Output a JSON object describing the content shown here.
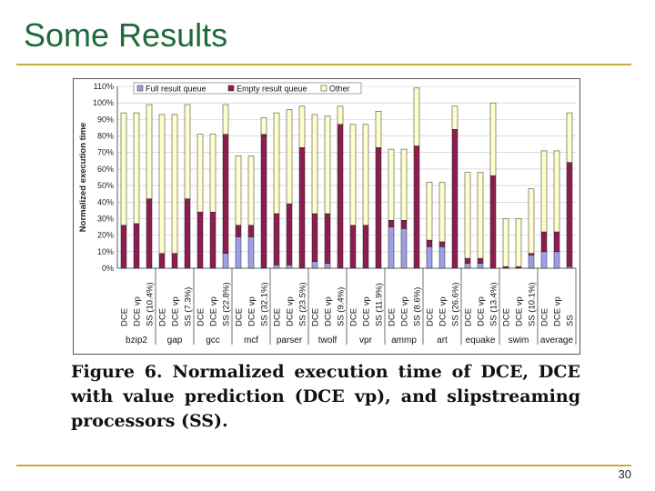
{
  "slide": {
    "title": "Some Results",
    "page_number": "30"
  },
  "caption": "Figure 6. Normalized execution time of DCE, DCE with value prediction (DCE vp), and slipstreaming processors (SS).",
  "colors": {
    "full": "#9e9ee8",
    "empty": "#8b1e4e",
    "other": "#ffffcc",
    "title": "#1f6a3a",
    "rule": "#c8a93c"
  },
  "chart_data": {
    "type": "bar",
    "stacked": true,
    "ylabel": "Normalized execution time",
    "ylim": [
      0,
      110
    ],
    "yticks": [
      "0%",
      "10%",
      "20%",
      "30%",
      "40%",
      "50%",
      "60%",
      "70%",
      "80%",
      "90%",
      "100%",
      "110%"
    ],
    "legend": [
      "Full result queue",
      "Empty result queue",
      "Other"
    ],
    "groups": [
      {
        "name": "bzip2",
        "bars": [
          {
            "label": "DCE",
            "full": 0,
            "empty": 26,
            "other": 68
          },
          {
            "label": "DCE vp",
            "full": 0,
            "empty": 27,
            "other": 67
          },
          {
            "label": "SS (10.4%)",
            "full": 0,
            "empty": 42,
            "other": 57
          }
        ]
      },
      {
        "name": "gap",
        "bars": [
          {
            "label": "DCE",
            "full": 0,
            "empty": 9,
            "other": 84
          },
          {
            "label": "DCE vp",
            "full": 0,
            "empty": 9,
            "other": 84
          },
          {
            "label": "SS (7.3%)",
            "full": 0,
            "empty": 42,
            "other": 57
          }
        ]
      },
      {
        "name": "gcc",
        "bars": [
          {
            "label": "DCE",
            "full": 0,
            "empty": 34,
            "other": 47
          },
          {
            "label": "DCE vp",
            "full": 0,
            "empty": 34,
            "other": 47
          },
          {
            "label": "SS (22.8%)",
            "full": 9,
            "empty": 72,
            "other": 18
          }
        ]
      },
      {
        "name": "mcf",
        "bars": [
          {
            "label": "DCE",
            "full": 19,
            "empty": 7,
            "other": 42
          },
          {
            "label": "DCE vp",
            "full": 19,
            "empty": 7,
            "other": 42
          },
          {
            "label": "SS (32.1%)",
            "full": 0,
            "empty": 81,
            "other": 10
          }
        ]
      },
      {
        "name": "parser",
        "bars": [
          {
            "label": "DCE",
            "full": 2,
            "empty": 31,
            "other": 61
          },
          {
            "label": "DCE vp",
            "full": 2,
            "empty": 37,
            "other": 57
          },
          {
            "label": "SS (23.5%)",
            "full": 0,
            "empty": 73,
            "other": 25
          }
        ]
      },
      {
        "name": "twolf",
        "bars": [
          {
            "label": "DCE",
            "full": 4,
            "empty": 29,
            "other": 60
          },
          {
            "label": "DCE vp",
            "full": 3,
            "empty": 30,
            "other": 59
          },
          {
            "label": "SS (9.4%)",
            "full": 0,
            "empty": 87,
            "other": 11
          }
        ]
      },
      {
        "name": "vpr",
        "bars": [
          {
            "label": "DCE",
            "full": 0,
            "empty": 26,
            "other": 61
          },
          {
            "label": "DCE vp",
            "full": 0,
            "empty": 26,
            "other": 61
          },
          {
            "label": "SS (11.9%)",
            "full": 0,
            "empty": 73,
            "other": 22
          }
        ]
      },
      {
        "name": "ammp",
        "bars": [
          {
            "label": "DCE",
            "full": 25,
            "empty": 4,
            "other": 43
          },
          {
            "label": "DCE vp",
            "full": 24,
            "empty": 5,
            "other": 43
          },
          {
            "label": "SS (8.6%)",
            "full": 0,
            "empty": 74,
            "other": 35
          }
        ]
      },
      {
        "name": "art",
        "bars": [
          {
            "label": "DCE",
            "full": 13,
            "empty": 4,
            "other": 35
          },
          {
            "label": "DCE vp",
            "full": 13,
            "empty": 3,
            "other": 36
          },
          {
            "label": "SS (26.6%)",
            "full": 0,
            "empty": 84,
            "other": 14
          }
        ]
      },
      {
        "name": "equake",
        "bars": [
          {
            "label": "DCE",
            "full": 3,
            "empty": 3,
            "other": 52
          },
          {
            "label": "DCE vp",
            "full": 3,
            "empty": 3,
            "other": 52
          },
          {
            "label": "SS (13.4%)",
            "full": 0,
            "empty": 56,
            "other": 44
          }
        ]
      },
      {
        "name": "swim",
        "bars": [
          {
            "label": "DCE",
            "full": 0,
            "empty": 1,
            "other": 29
          },
          {
            "label": "DCE vp",
            "full": 0,
            "empty": 1,
            "other": 29
          },
          {
            "label": "SS (10.1%)",
            "full": 8,
            "empty": 1,
            "other": 39
          }
        ]
      },
      {
        "name": "average",
        "bars": [
          {
            "label": "DCE",
            "full": 10,
            "empty": 12,
            "other": 49
          },
          {
            "label": "DCE vp",
            "full": 10,
            "empty": 12,
            "other": 49
          },
          {
            "label": "SS",
            "full": 1,
            "empty": 63,
            "other": 30
          }
        ]
      }
    ]
  }
}
